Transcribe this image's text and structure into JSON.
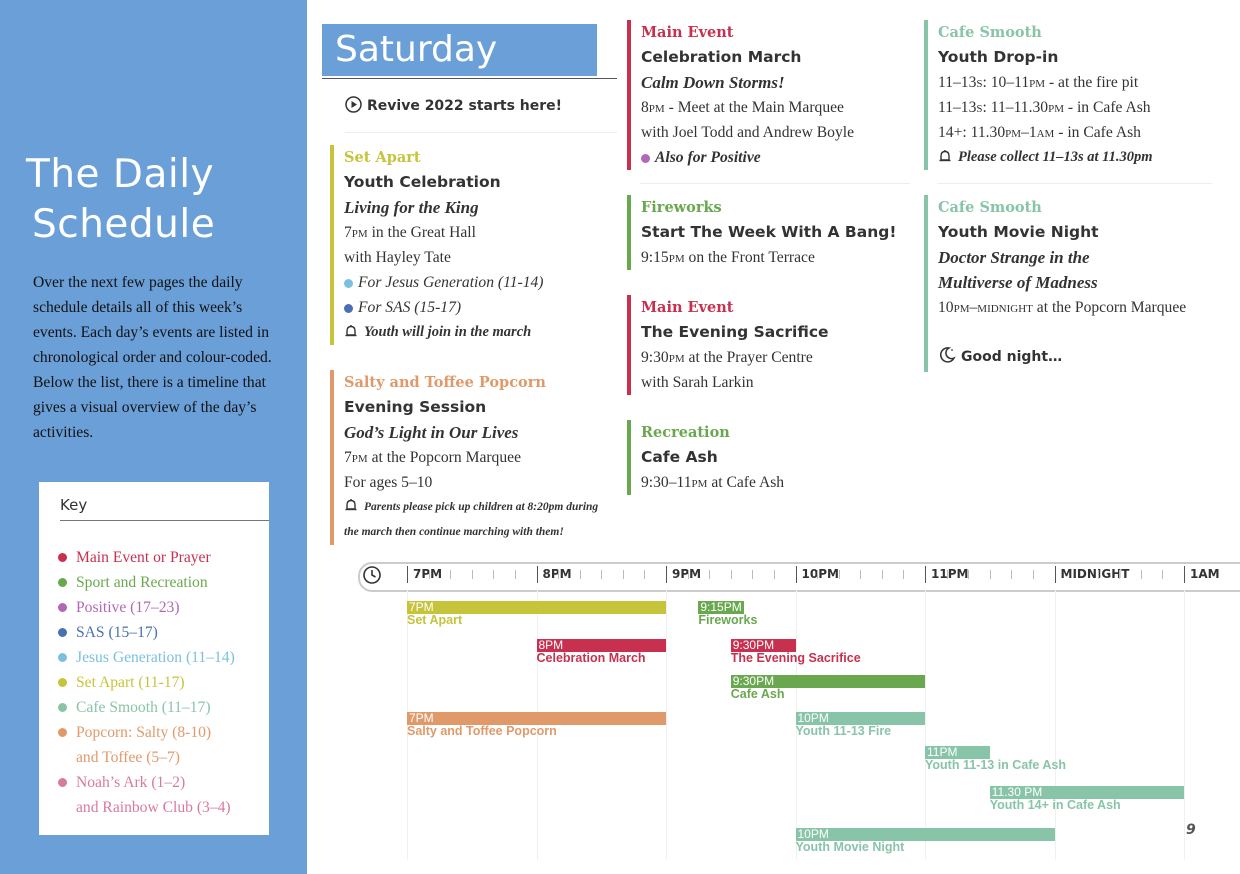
{
  "sidebar": {
    "title_line1": "The Daily",
    "title_line2": "Schedule",
    "intro": "Over the next few pages the daily schedule details all of this week’s events. Each day’s events are listed in chronological order and colour-coded. Below the list, there is a timeline that gives a visual overview of the day’s activities."
  },
  "key": {
    "title": "Key",
    "items": [
      {
        "label": "Main Event or Prayer",
        "color": "#c8304f"
      },
      {
        "label": "Sport and Recreation",
        "color": "#6aa84f"
      },
      {
        "label": "Positive (17–23)",
        "color": "#b267b6"
      },
      {
        "label": "SAS (15–17)",
        "color": "#4a6fb5"
      },
      {
        "label": "Jesus Generation (11–14)",
        "color": "#7cc0e0"
      },
      {
        "label": "Set Apart (11-17)",
        "color": "#c6c43a"
      },
      {
        "label": "Cafe Smooth (11–17)",
        "color": "#88c4a8"
      },
      {
        "label": "Popcorn: Salty (8-10)",
        "sub": "and Toffee (5–7)",
        "color": "#e09a6a"
      },
      {
        "label": "Noah’s Ark (1–2)",
        "sub": "and Rainbow Club (3–4)",
        "color": "#d87aa0"
      }
    ]
  },
  "day": {
    "name": "Saturday",
    "start_text": "Revive 2022 starts here!"
  },
  "events": {
    "set_apart": {
      "category": "Set Apart",
      "title": "Youth Celebration",
      "subtitle": "Living for the King",
      "time": "7pm",
      "place": " in the Great Hall",
      "with": "with Hayley Tate",
      "for1": "For Jesus Generation (11-14)",
      "for2": "For SAS (15-17)",
      "note": "Youth will join in the march"
    },
    "popcorn": {
      "category": "Salty and Toffee Popcorn",
      "title": "Evening Session",
      "subtitle": "God’s Light in Our Lives",
      "time": "7pm",
      "place": " at the Popcorn Marquee",
      "ages": "For ages 5–10",
      "note1": "Parents please pick up children at 8:20pm during",
      "note2": "the march then continue marching with them!"
    },
    "main1": {
      "category": "Main Event",
      "title": "Celebration March",
      "subtitle": "Calm Down Storms!",
      "time": "8pm",
      "place": " - Meet at the Main Marquee",
      "with": "with Joel Todd and Andrew Boyle",
      "also": "Also for Positive"
    },
    "fireworks": {
      "category": "Fireworks",
      "title": "Start The Week With A Bang!",
      "time": "9:15pm",
      "place": " on the Front Terrace"
    },
    "main2": {
      "category": "Main Event",
      "title": "The Evening Sacrifice",
      "time": "9:30pm",
      "place": " at the Prayer Centre",
      "with": "with Sarah Larkin"
    },
    "recreation": {
      "category": "Recreation",
      "title": "Cafe Ash",
      "time": "9:30–11pm",
      "place": " at Cafe Ash"
    },
    "cafe1": {
      "category": "Cafe Smooth",
      "title": "Youth Drop-in",
      "l1a": "11–13s: 10–11pm",
      "l1b": " - at the fire pit",
      "l2a": "11–13s: 11–11.30pm",
      "l2b": " - in Cafe Ash",
      "l3a": "14+: 11.30pm–1am",
      "l3b": " - in Cafe Ash",
      "note": "Please collect 11–13s at 11.30pm"
    },
    "cafe2": {
      "category": "Cafe Smooth",
      "title": "Youth Movie Night",
      "subtitle1": "Doctor Strange in the",
      "subtitle2": "Multiverse of Madness",
      "time": "10pm–midnight",
      "place": " at the Popcorn Marquee",
      "goodnight": "Good night…"
    }
  },
  "timeline": {
    "ticks": [
      "7PM",
      "8PM",
      "9PM",
      "10PM",
      "11PM",
      "MIDNIGHT",
      "1AM"
    ],
    "bars": [
      {
        "time": "7PM",
        "label": "Set Apart",
        "start": 19.0,
        "end": 21.0,
        "row": 0,
        "color": "#c6c43a"
      },
      {
        "time": "9:15PM",
        "label": "Fireworks",
        "start": 21.25,
        "end": 21.6,
        "row": 0,
        "color": "#6aa84f"
      },
      {
        "time": "8PM",
        "label": "Celebration March",
        "start": 20.0,
        "end": 21.0,
        "row": 1,
        "color": "#c8304f"
      },
      {
        "time": "9:30PM",
        "label": "The Evening Sacrifice",
        "start": 21.5,
        "end": 22.0,
        "row": 1,
        "color": "#c8304f"
      },
      {
        "time": "9:30PM",
        "label": "Cafe Ash",
        "start": 21.5,
        "end": 23.0,
        "row": 2,
        "color": "#6aa84f"
      },
      {
        "time": "7PM",
        "label": "Salty and Toffee Popcorn",
        "start": 19.0,
        "end": 21.0,
        "row": 3,
        "color": "#e09a6a"
      },
      {
        "time": "10PM",
        "label": "Youth 11-13 Fire",
        "start": 22.0,
        "end": 23.0,
        "row": 3,
        "color": "#88c4a8"
      },
      {
        "time": "11PM",
        "label": "Youth 11-13 in Cafe Ash",
        "start": 23.0,
        "end": 23.5,
        "row": 4,
        "color": "#88c4a8"
      },
      {
        "time": "11.30 PM",
        "label": "Youth 14+ in Cafe Ash",
        "start": 23.5,
        "end": 25.0,
        "row": 5,
        "color": "#88c4a8"
      },
      {
        "time": "10PM",
        "label": "Youth Movie Night",
        "start": 22.0,
        "end": 24.0,
        "row": 6,
        "color": "#88c4a8"
      }
    ]
  },
  "page_number": "9"
}
